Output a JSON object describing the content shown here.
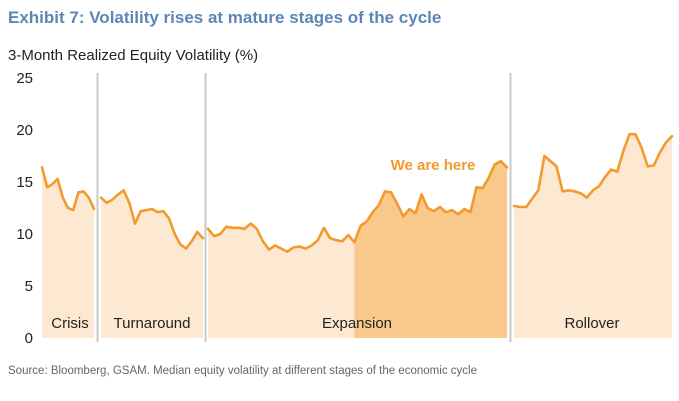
{
  "header": {
    "title": "Exhibit 7: Volatility rises at mature stages of the cycle",
    "ylabel": "3-Month Realized Equity Volatility (%)"
  },
  "footer": {
    "source": "Source: Bloomberg, GSAM. Median equity volatility at different stages of the economic cycle"
  },
  "colors": {
    "line": "#f39a2b",
    "fill": "#fde9d2",
    "highlight_fill": "#f9c98c",
    "divider": "#c9c9c9",
    "annotation": "#f39a2b",
    "title": "#5b87b5"
  },
  "chart_data": {
    "type": "area",
    "title": "Exhibit 7: Volatility rises at mature stages of the cycle",
    "ylabel": "3-Month Realized Equity Volatility (%)",
    "xlabel": "",
    "ylim": [
      0,
      25
    ],
    "yticks": [
      "0",
      "5",
      "10",
      "15",
      "20",
      "25"
    ],
    "grid": false,
    "annotation": "We are here",
    "segments": [
      {
        "name": "Crisis",
        "values": [
          16.4,
          14.5,
          14.8,
          15.3,
          13.5,
          12.5,
          12.3,
          14.0,
          14.1,
          13.5,
          12.4
        ]
      },
      {
        "name": "Turnaround",
        "values": [
          13.5,
          13.0,
          13.3,
          13.8,
          14.2,
          13.0,
          11.0,
          12.2,
          12.3,
          12.4,
          12.1,
          12.2,
          11.5,
          10.0,
          9.0,
          8.6,
          9.3,
          10.2,
          9.6
        ]
      },
      {
        "name": "Expansion",
        "values": [
          10.5,
          9.8,
          10.0,
          10.7,
          10.6,
          10.6,
          10.5,
          11.0,
          10.5,
          9.3,
          8.5,
          8.9,
          8.6,
          8.3,
          8.7,
          8.8,
          8.6,
          8.9,
          9.4,
          10.6,
          9.6,
          9.4,
          9.3,
          9.9,
          9.2,
          10.8,
          11.2,
          12.1,
          12.8,
          14.1,
          14.0,
          12.9,
          11.7,
          12.4,
          12.0,
          13.8,
          12.5,
          12.2,
          12.6,
          12.1,
          12.3,
          11.9,
          12.4,
          12.1,
          14.5,
          14.4,
          15.4,
          16.7,
          17.0,
          16.4
        ],
        "highlight_from_index": 24
      },
      {
        "name": "Rollover",
        "values": [
          12.7,
          12.6,
          12.6,
          13.4,
          14.2,
          17.5,
          17.0,
          16.5,
          14.1,
          14.2,
          14.1,
          13.9,
          13.5,
          14.2,
          14.6,
          15.5,
          16.2,
          16.0,
          18.0,
          19.6,
          19.6,
          18.3,
          16.5,
          16.6,
          17.8,
          18.8,
          19.4
        ]
      }
    ]
  }
}
